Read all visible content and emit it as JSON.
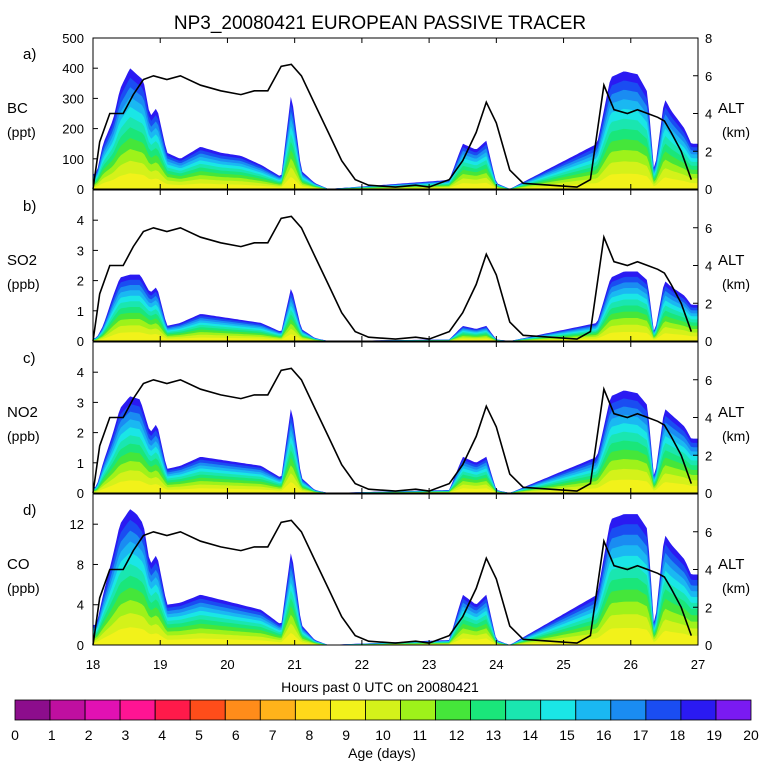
{
  "chart_data": {
    "type": "area",
    "title": "NP3_20080421 EUROPEAN PASSIVE TRACER",
    "xlabel": "Hours past 0 UTC on 20080421",
    "x_ticks": [
      "18",
      "19",
      "20",
      "21",
      "22",
      "23",
      "24",
      "25",
      "26",
      "27"
    ],
    "xlim": [
      18,
      27
    ],
    "right_axis": {
      "label": "ALT",
      "unit": "(km)",
      "ylim": [
        0,
        8
      ],
      "ticks": [
        "0",
        "2",
        "4",
        "6",
        "8"
      ]
    },
    "panels": [
      {
        "letter": "a)",
        "species": "BC",
        "unit": "(ppt)",
        "ylim": [
          0,
          500
        ],
        "y_ticks": [
          0,
          100,
          200,
          300,
          400,
          500
        ],
        "y_tick_labels": [
          "0",
          "100",
          "200",
          "300",
          "400",
          "500"
        ],
        "right_ticks": [
          "0",
          "2",
          "4",
          "6",
          "8"
        ],
        "total_peaks": [
          [
            18.05,
            50
          ],
          [
            18.15,
            150
          ],
          [
            18.3,
            230
          ],
          [
            18.4,
            330
          ],
          [
            18.55,
            400
          ],
          [
            18.65,
            380
          ],
          [
            18.75,
            360
          ],
          [
            18.85,
            240
          ],
          [
            18.95,
            270
          ],
          [
            19.1,
            120
          ],
          [
            19.3,
            100
          ],
          [
            19.6,
            140
          ],
          [
            19.9,
            120
          ],
          [
            20.2,
            110
          ],
          [
            20.5,
            80
          ],
          [
            20.8,
            40
          ],
          [
            20.95,
            320
          ],
          [
            21.1,
            60
          ],
          [
            21.3,
            20
          ],
          [
            21.5,
            0
          ],
          [
            23.3,
            30
          ],
          [
            23.5,
            150
          ],
          [
            23.7,
            130
          ],
          [
            23.85,
            160
          ],
          [
            24.0,
            20
          ],
          [
            24.2,
            0
          ],
          [
            25.5,
            150
          ],
          [
            25.7,
            370
          ],
          [
            25.9,
            390
          ],
          [
            26.1,
            380
          ],
          [
            26.25,
            320
          ],
          [
            26.35,
            50
          ],
          [
            26.5,
            300
          ],
          [
            26.6,
            260
          ],
          [
            26.8,
            200
          ],
          [
            26.9,
            150
          ]
        ]
      },
      {
        "letter": "b)",
        "species": "SO2",
        "unit": "(ppb)",
        "ylim": [
          0,
          5
        ],
        "y_ticks": [
          0,
          1,
          2,
          3,
          4
        ],
        "y_tick_labels": [
          "0",
          "1",
          "2",
          "3",
          "4"
        ],
        "right_ticks": [
          "0",
          "2",
          "4",
          "6"
        ],
        "total_peaks": [
          [
            18.05,
            0.1
          ],
          [
            18.15,
            0.5
          ],
          [
            18.3,
            1.5
          ],
          [
            18.4,
            2.1
          ],
          [
            18.55,
            2.2
          ],
          [
            18.7,
            2.2
          ],
          [
            18.85,
            1.6
          ],
          [
            18.95,
            1.8
          ],
          [
            19.1,
            0.5
          ],
          [
            19.3,
            0.6
          ],
          [
            19.6,
            0.9
          ],
          [
            19.9,
            0.8
          ],
          [
            20.2,
            0.7
          ],
          [
            20.5,
            0.6
          ],
          [
            20.8,
            0.3
          ],
          [
            20.95,
            1.8
          ],
          [
            21.1,
            0.4
          ],
          [
            21.3,
            0.1
          ],
          [
            21.5,
            0
          ],
          [
            23.3,
            0.05
          ],
          [
            23.5,
            0.5
          ],
          [
            23.7,
            0.4
          ],
          [
            23.85,
            0.5
          ],
          [
            24.0,
            0.05
          ],
          [
            24.2,
            0
          ],
          [
            25.5,
            0.6
          ],
          [
            25.7,
            2.1
          ],
          [
            25.9,
            2.3
          ],
          [
            26.1,
            2.3
          ],
          [
            26.25,
            2.0
          ],
          [
            26.35,
            0.2
          ],
          [
            26.5,
            2.0
          ],
          [
            26.6,
            1.8
          ],
          [
            26.8,
            1.5
          ],
          [
            26.9,
            1.2
          ]
        ]
      },
      {
        "letter": "c)",
        "species": "NO2",
        "unit": "(ppb)",
        "ylim": [
          0,
          5
        ],
        "y_ticks": [
          0,
          1,
          2,
          3,
          4
        ],
        "y_tick_labels": [
          "0",
          "1",
          "2",
          "3",
          "4"
        ],
        "right_ticks": [
          "0",
          "2",
          "4",
          "6"
        ],
        "total_peaks": [
          [
            18.05,
            0.2
          ],
          [
            18.15,
            1.0
          ],
          [
            18.3,
            2.0
          ],
          [
            18.4,
            2.8
          ],
          [
            18.55,
            3.2
          ],
          [
            18.7,
            3.1
          ],
          [
            18.85,
            2.0
          ],
          [
            18.95,
            2.3
          ],
          [
            19.1,
            0.8
          ],
          [
            19.3,
            0.9
          ],
          [
            19.6,
            1.2
          ],
          [
            19.9,
            1.1
          ],
          [
            20.2,
            1.0
          ],
          [
            20.5,
            0.9
          ],
          [
            20.8,
            0.5
          ],
          [
            20.95,
            2.9
          ],
          [
            21.1,
            0.5
          ],
          [
            21.3,
            0.1
          ],
          [
            21.5,
            0
          ],
          [
            23.3,
            0.1
          ],
          [
            23.5,
            1.2
          ],
          [
            23.7,
            1.0
          ],
          [
            23.85,
            1.2
          ],
          [
            24.0,
            0.1
          ],
          [
            24.2,
            0
          ],
          [
            25.5,
            1.2
          ],
          [
            25.7,
            3.2
          ],
          [
            25.9,
            3.4
          ],
          [
            26.1,
            3.3
          ],
          [
            26.25,
            2.9
          ],
          [
            26.35,
            0.4
          ],
          [
            26.5,
            2.8
          ],
          [
            26.6,
            2.6
          ],
          [
            26.8,
            2.2
          ],
          [
            26.9,
            1.8
          ]
        ]
      },
      {
        "letter": "d)",
        "species": "CO",
        "unit": "(ppb)",
        "ylim": [
          0,
          15
        ],
        "y_ticks": [
          0,
          4,
          8,
          12
        ],
        "y_tick_labels": [
          "0",
          "4",
          "8",
          "12"
        ],
        "right_ticks": [
          "0",
          "2",
          "4",
          "6"
        ],
        "total_peaks": [
          [
            18.05,
            2.0
          ],
          [
            18.15,
            5.0
          ],
          [
            18.3,
            9.0
          ],
          [
            18.4,
            12.0
          ],
          [
            18.55,
            13.5
          ],
          [
            18.65,
            13.0
          ],
          [
            18.75,
            12.0
          ],
          [
            18.85,
            8.0
          ],
          [
            18.95,
            9.0
          ],
          [
            19.1,
            4.0
          ],
          [
            19.3,
            4.2
          ],
          [
            19.6,
            5.0
          ],
          [
            19.9,
            4.5
          ],
          [
            20.2,
            4.0
          ],
          [
            20.5,
            3.5
          ],
          [
            20.8,
            2.0
          ],
          [
            20.95,
            9.5
          ],
          [
            21.1,
            2.0
          ],
          [
            21.3,
            0.5
          ],
          [
            21.5,
            0
          ],
          [
            23.3,
            0.5
          ],
          [
            23.5,
            5.0
          ],
          [
            23.7,
            4.0
          ],
          [
            23.85,
            5.0
          ],
          [
            24.0,
            0.5
          ],
          [
            24.2,
            0
          ],
          [
            25.5,
            5.0
          ],
          [
            25.7,
            12.5
          ],
          [
            25.9,
            13.0
          ],
          [
            26.1,
            13.0
          ],
          [
            26.25,
            11.5
          ],
          [
            26.35,
            1.5
          ],
          [
            26.5,
            11.0
          ],
          [
            26.6,
            10.0
          ],
          [
            26.8,
            8.5
          ],
          [
            26.9,
            7.0
          ]
        ]
      }
    ],
    "altitude_km": [
      [
        18.0,
        0
      ],
      [
        18.1,
        2.5
      ],
      [
        18.25,
        4.0
      ],
      [
        18.45,
        4.0
      ],
      [
        18.6,
        5.0
      ],
      [
        18.75,
        5.8
      ],
      [
        18.9,
        6.0
      ],
      [
        19.1,
        5.8
      ],
      [
        19.3,
        6.0
      ],
      [
        19.6,
        5.5
      ],
      [
        19.9,
        5.2
      ],
      [
        20.2,
        5.0
      ],
      [
        20.4,
        5.2
      ],
      [
        20.6,
        5.2
      ],
      [
        20.8,
        6.5
      ],
      [
        20.95,
        6.6
      ],
      [
        21.1,
        6.0
      ],
      [
        21.3,
        4.5
      ],
      [
        21.5,
        3.0
      ],
      [
        21.7,
        1.5
      ],
      [
        21.9,
        0.5
      ],
      [
        22.1,
        0.2
      ],
      [
        22.5,
        0.1
      ],
      [
        22.8,
        0.2
      ],
      [
        23.0,
        0.1
      ],
      [
        23.3,
        0.5
      ],
      [
        23.5,
        1.5
      ],
      [
        23.7,
        3.0
      ],
      [
        23.85,
        4.6
      ],
      [
        24.0,
        3.5
      ],
      [
        24.2,
        1.0
      ],
      [
        24.4,
        0.3
      ],
      [
        24.8,
        0.2
      ],
      [
        25.2,
        0.1
      ],
      [
        25.4,
        0.5
      ],
      [
        25.6,
        5.5
      ],
      [
        25.75,
        4.2
      ],
      [
        25.95,
        4.0
      ],
      [
        26.1,
        4.2
      ],
      [
        26.25,
        4.0
      ],
      [
        26.4,
        3.8
      ],
      [
        26.5,
        3.6
      ],
      [
        26.6,
        3.0
      ],
      [
        26.75,
        2.0
      ],
      [
        26.9,
        0.5
      ]
    ],
    "colorbar": {
      "label": "Age (days)",
      "tick_labels": [
        "0",
        "1",
        "2",
        "3",
        "4",
        "5",
        "6",
        "7",
        "8",
        "9",
        "10",
        "11",
        "12",
        "13",
        "14",
        "15",
        "16",
        "17",
        "18",
        "19",
        "20"
      ],
      "colors": [
        "#8c0d8c",
        "#bf0fa0",
        "#e211b3",
        "#ff1493",
        "#ff1a4a",
        "#ff4d1a",
        "#ff8c1a",
        "#ffb31a",
        "#ffd91a",
        "#f2f21a",
        "#d4f21a",
        "#9ef21a",
        "#45e63a",
        "#1ae67a",
        "#1ae6b0",
        "#1ae6e6",
        "#1ab8f2",
        "#1a8cf2",
        "#1a4df2",
        "#2a1af2",
        "#7a1af2"
      ]
    }
  }
}
